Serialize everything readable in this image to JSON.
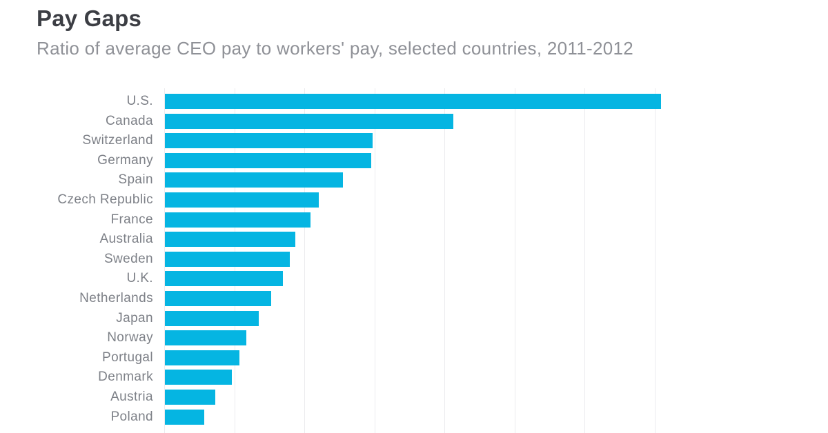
{
  "header": {
    "title": "Pay Gaps",
    "subtitle": "Ratio of average CEO pay to workers' pay, selected countries, 2011-2012"
  },
  "colors": {
    "bar": "#05b5e2",
    "grid": "#ebebee",
    "title": "#3c3e44",
    "subtitle": "#8f9197",
    "label": "#7d8087"
  },
  "chart_data": {
    "type": "bar",
    "orientation": "horizontal",
    "title": "Pay Gaps",
    "subtitle": "Ratio of average CEO pay to workers' pay, selected countries, 2011-2012",
    "xlabel": "",
    "ylabel": "",
    "xlim": [
      0,
      350
    ],
    "grid": true,
    "grid_step": 50,
    "legend": null,
    "categories": [
      "U.S.",
      "Canada",
      "Switzerland",
      "Germany",
      "Spain",
      "Czech Republic",
      "France",
      "Australia",
      "Sweden",
      "U.K.",
      "Netherlands",
      "Japan",
      "Norway",
      "Portugal",
      "Denmark",
      "Austria",
      "Poland"
    ],
    "values": [
      354,
      206,
      148,
      147,
      127,
      110,
      104,
      93,
      89,
      84,
      76,
      67,
      58,
      53,
      48,
      36,
      28
    ]
  }
}
